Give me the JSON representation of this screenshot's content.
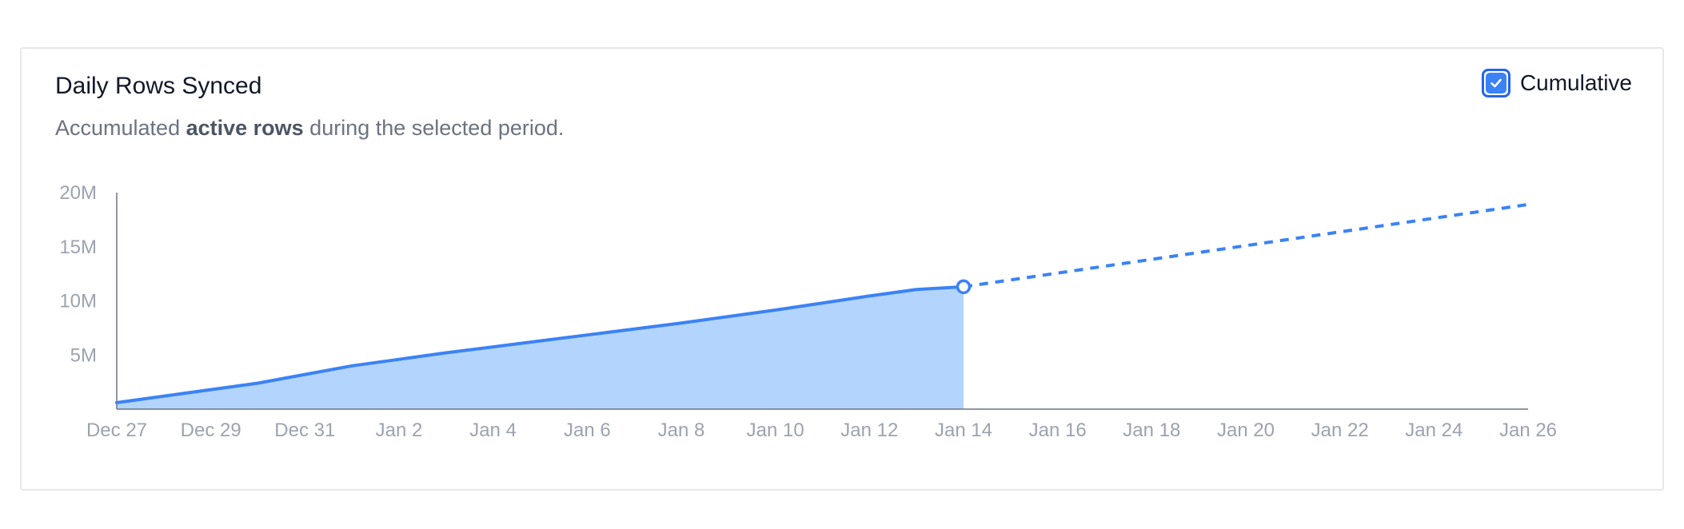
{
  "card": {
    "title": "Daily Rows Synced",
    "subtitle_pre": "Accumulated ",
    "subtitle_bold": "active rows",
    "subtitle_post": " during the selected period.",
    "toggle": {
      "label": "Cumulative",
      "checked": true,
      "icon": "check-icon"
    }
  },
  "colors": {
    "line": "#3b82f6",
    "area": "#b3d4fd",
    "axis": "#6b7280",
    "tick_text": "#9ca3af"
  },
  "chart_data": {
    "type": "area",
    "title": "Daily Rows Synced",
    "xlabel": "",
    "ylabel": "",
    "ylim": [
      0,
      20000000
    ],
    "xlim": [
      "2023-12-27",
      "2024-01-26"
    ],
    "x_tick_labels": [
      "Dec 27",
      "Dec 29",
      "Dec 31",
      "Jan 2",
      "Jan 4",
      "Jan 6",
      "Jan 8",
      "Jan 10",
      "Jan 12",
      "Jan 14",
      "Jan 16",
      "Jan 18",
      "Jan 20",
      "Jan 22",
      "Jan 24",
      "Jan 26"
    ],
    "y_tick_labels": [
      "20M",
      "15M",
      "10M",
      "5M"
    ],
    "y_tick_values": [
      20000000,
      15000000,
      10000000,
      5000000
    ],
    "grid": false,
    "legend": "none",
    "series": [
      {
        "style": "solid-area",
        "x": [
          "2023-12-27",
          "2023-12-28",
          "2023-12-29",
          "2023-12-30",
          "2023-12-31",
          "2024-01-01",
          "2024-01-02",
          "2024-01-03",
          "2024-01-04",
          "2024-01-05",
          "2024-01-06",
          "2024-01-07",
          "2024-01-08",
          "2024-01-09",
          "2024-01-10",
          "2024-01-11",
          "2024-01-12",
          "2024-01-13",
          "2024-01-14"
        ],
        "values": [
          600000,
          1200000,
          1800000,
          2400000,
          3200000,
          4000000,
          4600000,
          5200000,
          5750000,
          6300000,
          6850000,
          7400000,
          7950000,
          8550000,
          9150000,
          9800000,
          10450000,
          11050000,
          11300000
        ]
      },
      {
        "style": "dashed-projection",
        "x": [
          "2024-01-14",
          "2024-01-26"
        ],
        "values": [
          11300000,
          18900000
        ]
      }
    ]
  }
}
